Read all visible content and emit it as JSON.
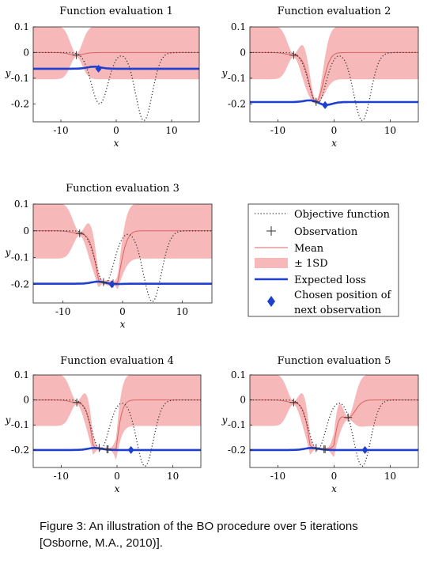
{
  "caption": {
    "line1": "Figure 3: An illustration of the BO procedure over 5 iterations",
    "line2": "[Osborne, M.A., 2010)]."
  },
  "colors": {
    "objective": "#333333",
    "mean": "#e06060",
    "band": "#f6b8b8",
    "loss": "#1f3fcf",
    "diamond": "#1f3fcf",
    "observation": "#333333"
  },
  "legend": {
    "position": "center-right",
    "entries": [
      {
        "key": "objective",
        "label": "Objective function"
      },
      {
        "key": "observation",
        "label": "Observation"
      },
      {
        "key": "mean",
        "label": "Mean"
      },
      {
        "key": "band",
        "label": "± 1SD"
      },
      {
        "key": "loss",
        "label": "Expected loss"
      },
      {
        "key": "chosen",
        "label": "Chosen position of",
        "label2": "next observation"
      }
    ]
  },
  "chart_data": [
    {
      "type": "line",
      "title": "Function evaluation 1",
      "xlabel": "x",
      "ylabel": "y",
      "xlim": [
        -15,
        15
      ],
      "ylim": [
        -0.27,
        0.1
      ],
      "xticks": [
        -10,
        0,
        10
      ],
      "yticks": [
        0.1,
        0,
        -0.1,
        -0.2
      ],
      "xtick_labels": [
        "-10",
        "0",
        "10"
      ],
      "ytick_labels": [
        "0.1",
        "0",
        "-0.1",
        "-0.2"
      ],
      "observations": [
        {
          "x": -7.2,
          "y": -0.01
        }
      ],
      "sd": 0.1,
      "loss_baseline": -0.063,
      "chosen": {
        "x": -3.2,
        "y": -0.063
      }
    },
    {
      "type": "line",
      "title": "Function evaluation 2",
      "xlabel": "x",
      "ylabel": "y",
      "xlim": [
        -15,
        15
      ],
      "ylim": [
        -0.27,
        0.1
      ],
      "xticks": [
        -10,
        0,
        10
      ],
      "yticks": [
        0.1,
        0,
        -0.1,
        -0.2
      ],
      "xtick_labels": [
        "-10",
        "0",
        "10"
      ],
      "ytick_labels": [
        "0.1",
        "0",
        "-0.1",
        "-0.2"
      ],
      "observations": [
        {
          "x": -7.2,
          "y": -0.01
        },
        {
          "x": -3.2,
          "y": -0.192
        }
      ],
      "sd": 0.1,
      "loss_baseline": -0.193,
      "chosen": {
        "x": -1.6,
        "y": -0.205
      }
    },
    {
      "type": "line",
      "title": "Function evaluation 3",
      "xlabel": "x",
      "ylabel": "y",
      "xlim": [
        -15,
        15
      ],
      "ylim": [
        -0.27,
        0.1
      ],
      "xticks": [
        -10,
        0,
        10
      ],
      "yticks": [
        0.1,
        0,
        -0.1,
        -0.2
      ],
      "xtick_labels": [
        "-10",
        "0",
        "10"
      ],
      "ytick_labels": [
        "0.1",
        "0",
        "-0.1",
        "-0.2"
      ],
      "observations": [
        {
          "x": -7.2,
          "y": -0.01
        },
        {
          "x": -3.2,
          "y": -0.192
        },
        {
          "x": -1.6,
          "y": -0.197
        }
      ],
      "sd": 0.1,
      "loss_baseline": -0.198,
      "chosen": {
        "x": -1.8,
        "y": -0.2
      }
    },
    {
      "type": "line",
      "title": "Function evaluation 4",
      "xlabel": "x",
      "ylabel": "y",
      "xlim": [
        -15,
        15
      ],
      "ylim": [
        -0.27,
        0.1
      ],
      "xticks": [
        -10,
        0,
        10
      ],
      "yticks": [
        0.1,
        0,
        -0.1,
        -0.2
      ],
      "xtick_labels": [
        "-10",
        "0",
        "10"
      ],
      "ytick_labels": [
        "0.1",
        "0",
        "-0.1",
        "-0.2"
      ],
      "observations": [
        {
          "x": -7.2,
          "y": -0.01
        },
        {
          "x": -3.2,
          "y": -0.192
        },
        {
          "x": -1.6,
          "y": -0.197
        },
        {
          "x": -1.8,
          "y": -0.197
        }
      ],
      "sd": 0.1,
      "loss_baseline": -0.2,
      "chosen": {
        "x": 2.5,
        "y": -0.2
      }
    },
    {
      "type": "line",
      "title": "Function evaluation 5",
      "xlabel": "x",
      "ylabel": "y",
      "xlim": [
        -15,
        15
      ],
      "ylim": [
        -0.27,
        0.1
      ],
      "xticks": [
        -10,
        0,
        10
      ],
      "yticks": [
        0.1,
        0,
        -0.1,
        -0.2
      ],
      "xtick_labels": [
        "-10",
        "0",
        "10"
      ],
      "ytick_labels": [
        "0.1",
        "0",
        "-0.1",
        "-0.2"
      ],
      "observations": [
        {
          "x": -7.2,
          "y": -0.01
        },
        {
          "x": -3.2,
          "y": -0.192
        },
        {
          "x": -1.6,
          "y": -0.197
        },
        {
          "x": -1.8,
          "y": -0.197
        },
        {
          "x": 2.5,
          "y": -0.07
        }
      ],
      "sd": 0.1,
      "loss_baseline": -0.2,
      "chosen": {
        "x": 5.5,
        "y": -0.2
      }
    }
  ]
}
